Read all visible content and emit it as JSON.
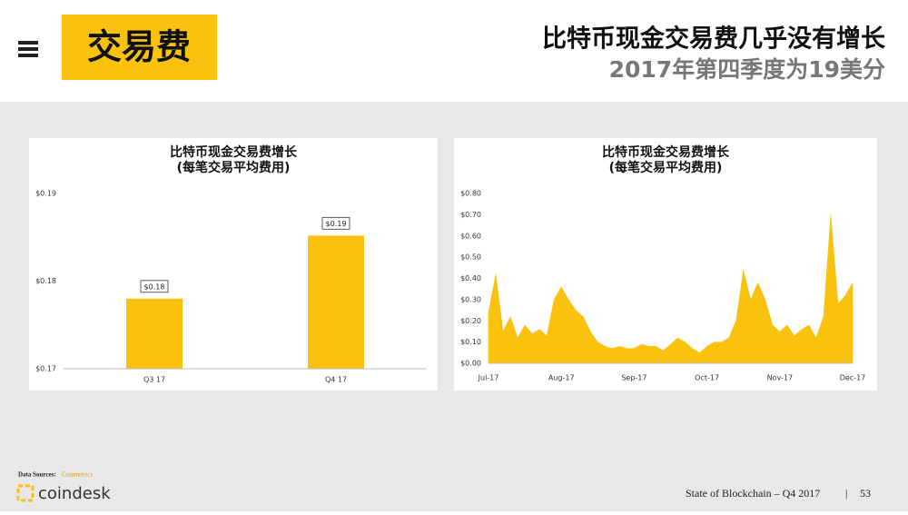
{
  "header": {
    "section": "交易费",
    "headline": "比特币现金交易费几乎没有增长",
    "subheadline": "2017年第四季度为19美分"
  },
  "chart_data": [
    {
      "type": "bar",
      "title": "比特币现金交易费增长",
      "subtitle": "(每笔交易平均费用)",
      "categories": [
        "Q3 17",
        "Q4 17"
      ],
      "values": [
        0.178,
        0.1852
      ],
      "value_labels": [
        "$0.18",
        "$0.19"
      ],
      "color": "#f9c20f",
      "grid": false,
      "ylim": [
        0.17,
        0.19
      ],
      "yticks": [
        {
          "value": 0.17,
          "label": "$0.17"
        },
        {
          "value": 0.18,
          "label": "$0.18"
        },
        {
          "value": 0.19,
          "label": "$0.19"
        }
      ]
    },
    {
      "type": "area",
      "title": "比特币现金交易费增长",
      "subtitle": "(每笔交易平均费用)",
      "categories": [
        "Jul-17",
        null,
        null,
        null,
        null,
        null,
        null,
        null,
        null,
        null,
        "Aug-17",
        null,
        null,
        null,
        null,
        null,
        null,
        null,
        null,
        null,
        "Sep-17",
        null,
        null,
        null,
        null,
        null,
        null,
        null,
        null,
        null,
        "Oct-17",
        null,
        null,
        null,
        null,
        null,
        null,
        null,
        null,
        null,
        "Nov-17",
        null,
        null,
        null,
        null,
        null,
        null,
        null,
        null,
        null,
        "Dec-17"
      ],
      "values": [
        0.24,
        0.42,
        0.15,
        0.22,
        0.12,
        0.18,
        0.14,
        0.16,
        0.13,
        0.3,
        0.36,
        0.3,
        0.25,
        0.22,
        0.15,
        0.1,
        0.08,
        0.07,
        0.08,
        0.07,
        0.07,
        0.09,
        0.08,
        0.08,
        0.06,
        0.09,
        0.12,
        0.1,
        0.07,
        0.05,
        0.08,
        0.1,
        0.1,
        0.12,
        0.2,
        0.44,
        0.3,
        0.38,
        0.3,
        0.18,
        0.15,
        0.18,
        0.13,
        0.16,
        0.18,
        0.12,
        0.22,
        0.7,
        0.28,
        0.32,
        0.38
      ],
      "color": "#f9c20f",
      "grid": false,
      "ylim": [
        0,
        0.8
      ],
      "yticks": [
        {
          "value": 0,
          "label": "$0.00"
        },
        {
          "value": 0.1,
          "label": "$0.10"
        },
        {
          "value": 0.2,
          "label": "$0.20"
        },
        {
          "value": 0.3,
          "label": "$0.30"
        },
        {
          "value": 0.4,
          "label": "$0.40"
        },
        {
          "value": 0.5,
          "label": "$0.50"
        },
        {
          "value": 0.6,
          "label": "$0.60"
        },
        {
          "value": 0.7,
          "label": "$0.70"
        },
        {
          "value": 0.8,
          "label": "$0.80"
        }
      ]
    }
  ],
  "footer": {
    "source_label": "Data Sources:",
    "source": "Coinmetrics",
    "logo": "coindesk",
    "report": "State of Blockchain – Q4 2017",
    "separator": "|",
    "page": "53"
  }
}
